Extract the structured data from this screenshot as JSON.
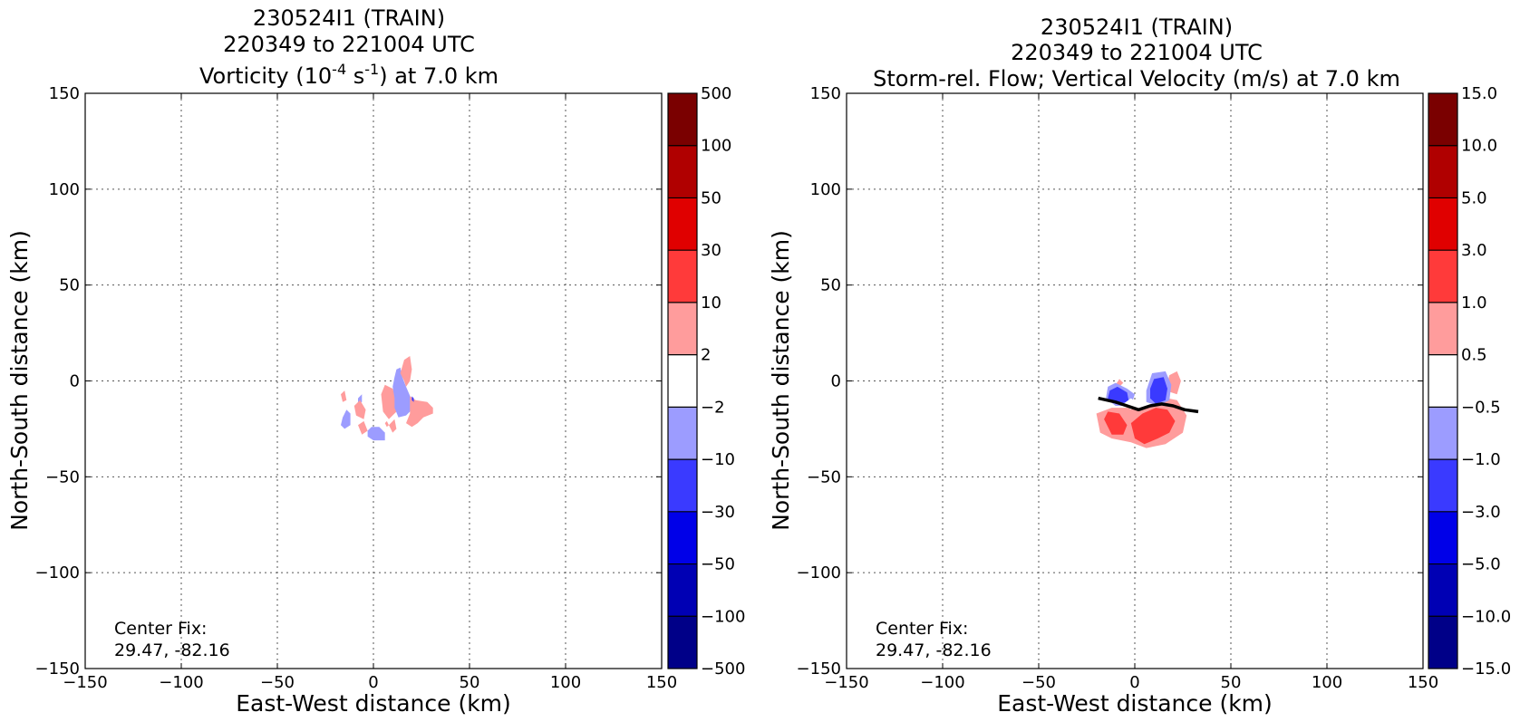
{
  "chart_data": [
    {
      "type": "heatmap",
      "title_lines": [
        "230524I1 (TRAIN)",
        "220349 to 221004 UTC"
      ],
      "title_main": {
        "prefix": "Vorticity (10",
        "sup1": "-4",
        "mid": " s",
        "sup2": "-1",
        "suffix": ") at 7.0 km"
      },
      "xlabel": "East-West distance (km)",
      "ylabel": "North-South distance (km)",
      "xlim": [
        -150,
        150
      ],
      "ylim": [
        -150,
        150
      ],
      "xticks": [
        -150,
        -100,
        -50,
        0,
        50,
        100,
        150
      ],
      "yticks": [
        -150,
        -100,
        -50,
        0,
        50,
        100,
        150
      ],
      "xtick_labels": [
        "−150",
        "−100",
        "−50",
        "0",
        "50",
        "100",
        "150"
      ],
      "ytick_labels": [
        "−150",
        "−100",
        "−50",
        "0",
        "50",
        "100",
        "150"
      ],
      "grid": true,
      "annotation": [
        "Center Fix:",
        "29.47, -82.16"
      ],
      "colorbar": {
        "labels": [
          "500",
          "100",
          "50",
          "30",
          "10",
          "2",
          "−2",
          "−10",
          "−30",
          "−50",
          "−100",
          "−500"
        ],
        "colors": [
          "#7a0000",
          "#b00000",
          "#e00000",
          "#ff3a3a",
          "#ff9c9c",
          "#ffffff",
          "#9c9cff",
          "#3a3aff",
          "#0000e8",
          "#0000b4",
          "#000088"
        ]
      },
      "regions": [
        {
          "color": "#9c9cff",
          "points": [
            [
              -16,
              -19
            ],
            [
              -14,
              -15
            ],
            [
              -12,
              -17
            ],
            [
              -12,
              -23
            ],
            [
              -15,
              -25
            ],
            [
              -17,
              -23
            ]
          ]
        },
        {
          "color": "#9c9cff",
          "points": [
            [
              -8,
              -9
            ],
            [
              -6,
              -7
            ],
            [
              -6,
              -11
            ],
            [
              -8,
              -12
            ]
          ]
        },
        {
          "color": "#ff9c9c",
          "points": [
            [
              -17,
              -7
            ],
            [
              -15,
              -5
            ],
            [
              -14,
              -10
            ],
            [
              -16,
              -11
            ]
          ]
        },
        {
          "color": "#ff9c9c",
          "points": [
            [
              -10,
              -13
            ],
            [
              -7,
              -10
            ],
            [
              -4,
              -15
            ],
            [
              -5,
              -20
            ],
            [
              -9,
              -18
            ]
          ]
        },
        {
          "color": "#ff9c9c",
          "points": [
            [
              -8,
              -23
            ],
            [
              -5,
              -21
            ],
            [
              -3,
              -26
            ],
            [
              -6,
              -28
            ]
          ]
        },
        {
          "color": "#9c9cff",
          "points": [
            [
              -3,
              -26
            ],
            [
              -1,
              -24
            ],
            [
              3,
              -24
            ],
            [
              6,
              -27
            ],
            [
              6,
              -31
            ],
            [
              0,
              -31
            ],
            [
              -3,
              -29
            ]
          ]
        },
        {
          "color": "#ff9c9c",
          "points": [
            [
              4,
              -7
            ],
            [
              6,
              -2
            ],
            [
              10,
              -4
            ],
            [
              12,
              -9
            ],
            [
              12,
              -16
            ],
            [
              8,
              -20
            ],
            [
              5,
              -16
            ]
          ]
        },
        {
          "color": "#ff9c9c",
          "points": [
            [
              8,
              -23
            ],
            [
              11,
              -20
            ],
            [
              12,
              -25
            ],
            [
              10,
              -27
            ]
          ]
        },
        {
          "color": "#9c9cff",
          "points": [
            [
              10,
              -3
            ],
            [
              11,
              2
            ],
            [
              12,
              6
            ],
            [
              14,
              7
            ],
            [
              15,
              2
            ],
            [
              17,
              -3
            ],
            [
              20,
              -10
            ],
            [
              20,
              -15
            ],
            [
              17,
              -18
            ],
            [
              13,
              -19
            ],
            [
              11,
              -14
            ],
            [
              11,
              -9
            ]
          ]
        },
        {
          "color": "#ff9c9c",
          "points": [
            [
              14,
              4
            ],
            [
              16,
              11
            ],
            [
              19,
              13
            ],
            [
              20,
              6
            ],
            [
              19,
              0
            ],
            [
              17,
              -3
            ],
            [
              16,
              0
            ]
          ]
        },
        {
          "color": "#ff9c9c",
          "points": [
            [
              19,
              -8
            ],
            [
              22,
              -10
            ],
            [
              28,
              -11
            ],
            [
              31,
              -14
            ],
            [
              31,
              -17
            ],
            [
              26,
              -19
            ],
            [
              23,
              -22
            ],
            [
              20,
              -24
            ],
            [
              17,
              -22
            ],
            [
              19,
              -17
            ]
          ]
        },
        {
          "color": "#3a3aff",
          "points": [
            [
              20,
              -8
            ],
            [
              21,
              -9
            ],
            [
              21,
              -11
            ],
            [
              20,
              -10
            ]
          ]
        },
        {
          "color": "#ff9c9c",
          "points": [
            [
              6,
              -22
            ],
            [
              7,
              -21
            ],
            [
              8,
              -23
            ],
            [
              7,
              -24
            ]
          ]
        }
      ]
    },
    {
      "type": "heatmap",
      "title_lines": [
        "230524I1 (TRAIN)",
        "220349 to 221004 UTC"
      ],
      "title_main_text": "Storm-rel. Flow; Vertical Velocity (m/s) at 7.0 km",
      "xlabel": "East-West distance (km)",
      "ylabel": "North-South distance (km)",
      "xlim": [
        -150,
        150
      ],
      "ylim": [
        -150,
        150
      ],
      "xticks": [
        -150,
        -100,
        -50,
        0,
        50,
        100,
        150
      ],
      "yticks": [
        -150,
        -100,
        -50,
        0,
        50,
        100,
        150
      ],
      "xtick_labels": [
        "−150",
        "−100",
        "−50",
        "0",
        "50",
        "100",
        "150"
      ],
      "ytick_labels": [
        "−150",
        "−100",
        "−50",
        "0",
        "50",
        "100",
        "150"
      ],
      "grid": true,
      "annotation": [
        "Center Fix:",
        "29.47, -82.16"
      ],
      "colorbar": {
        "labels": [
          "15.0",
          "10.0",
          "5.0",
          "3.0",
          "1.0",
          "0.5",
          "−0.5",
          "−1.0",
          "−3.0",
          "−5.0",
          "−10.0",
          "−15.0"
        ],
        "colors": [
          "#7a0000",
          "#b00000",
          "#e00000",
          "#ff3a3a",
          "#ff9c9c",
          "#ffffff",
          "#9c9cff",
          "#3a3aff",
          "#0000e8",
          "#0000b4",
          "#000088"
        ]
      },
      "regions": [
        {
          "color": "#ff9c9c",
          "points": [
            [
              -20,
              -17
            ],
            [
              -18,
              -27
            ],
            [
              -12,
              -30
            ],
            [
              -2,
              -32
            ],
            [
              6,
              -35
            ],
            [
              16,
              -33
            ],
            [
              25,
              -27
            ],
            [
              27,
              -18
            ],
            [
              22,
              -10
            ],
            [
              17,
              -9
            ],
            [
              12,
              -12
            ],
            [
              4,
              -15
            ],
            [
              -4,
              -14
            ],
            [
              -12,
              -14
            ]
          ]
        },
        {
          "color": "#ff9c9c",
          "points": [
            [
              16,
              -5
            ],
            [
              18,
              3
            ],
            [
              22,
              5
            ],
            [
              24,
              0
            ],
            [
              22,
              -7
            ]
          ]
        },
        {
          "color": "#ff9c9c",
          "points": [
            [
              -10,
              -2
            ],
            [
              -8,
              1
            ],
            [
              -6,
              -1
            ],
            [
              -8,
              -3
            ]
          ]
        },
        {
          "color": "#ff3a3a",
          "points": [
            [
              -16,
              -20
            ],
            [
              -12,
              -28
            ],
            [
              -6,
              -28
            ],
            [
              -4,
              -23
            ],
            [
              -8,
              -17
            ],
            [
              -14,
              -16
            ]
          ]
        },
        {
          "color": "#ff3a3a",
          "points": [
            [
              -2,
              -22
            ],
            [
              0,
              -30
            ],
            [
              5,
              -33
            ],
            [
              12,
              -30
            ],
            [
              18,
              -27
            ],
            [
              21,
              -21
            ],
            [
              17,
              -15
            ],
            [
              11,
              -14
            ],
            [
              4,
              -17
            ]
          ]
        },
        {
          "color": "#9c9cff",
          "points": [
            [
              -14,
              -3
            ],
            [
              -10,
              -1
            ],
            [
              -4,
              -4
            ],
            [
              0,
              -7
            ],
            [
              -2,
              -13
            ],
            [
              -10,
              -13
            ],
            [
              -15,
              -9
            ]
          ]
        },
        {
          "color": "#9c9cff",
          "points": [
            [
              6,
              -5
            ],
            [
              9,
              4
            ],
            [
              16,
              5
            ],
            [
              19,
              -2
            ],
            [
              18,
              -10
            ],
            [
              12,
              -13
            ],
            [
              6,
              -11
            ]
          ]
        },
        {
          "color": "#3a3aff",
          "points": [
            [
              -13,
              -5
            ],
            [
              -9,
              -3
            ],
            [
              -4,
              -6
            ],
            [
              -3,
              -11
            ],
            [
              -10,
              -12
            ],
            [
              -14,
              -9
            ]
          ]
        },
        {
          "color": "#3a3aff",
          "points": [
            [
              8,
              -4
            ],
            [
              10,
              1
            ],
            [
              15,
              2
            ],
            [
              17,
              -4
            ],
            [
              16,
              -10
            ],
            [
              11,
              -12
            ],
            [
              8,
              -9
            ]
          ]
        },
        {
          "color": "#ffffff",
          "points": [
            [
              -6,
              -12
            ],
            [
              -2,
              -9
            ],
            [
              2,
              -12
            ],
            [
              -2,
              -15
            ]
          ]
        }
      ],
      "streamline": [
        [
          -19,
          -9
        ],
        [
          -10,
          -11
        ],
        [
          -4,
          -13
        ],
        [
          2,
          -15
        ],
        [
          8,
          -13
        ],
        [
          14,
          -12
        ],
        [
          20,
          -13
        ],
        [
          26,
          -15
        ],
        [
          33,
          -16
        ]
      ]
    }
  ]
}
